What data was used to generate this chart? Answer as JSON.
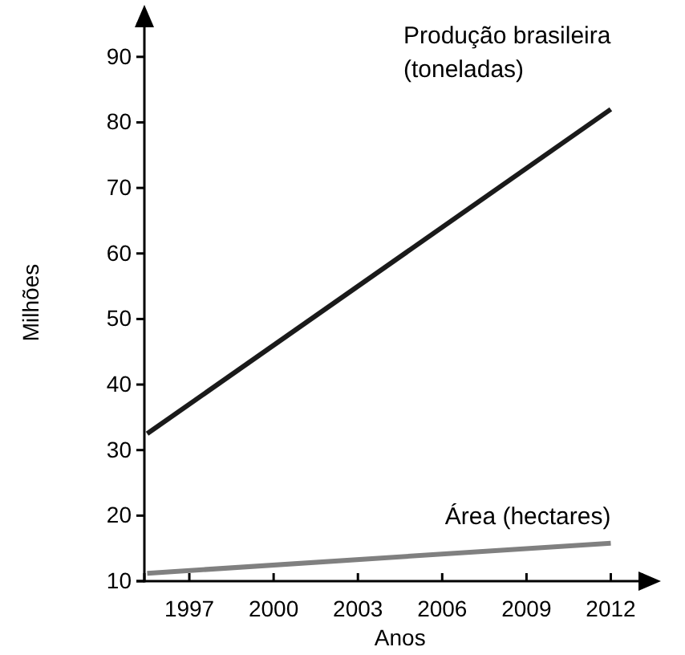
{
  "chart_data": {
    "type": "line",
    "xlabel": "Anos",
    "ylabel": "Milhões",
    "xlim": [
      1995.4,
      2013.1
    ],
    "ylim": [
      10,
      95
    ],
    "xticks": [
      1997,
      2000,
      2003,
      2006,
      2009,
      2012
    ],
    "yticks": [
      10,
      20,
      30,
      40,
      50,
      60,
      70,
      80,
      90
    ],
    "marker": "none",
    "line_style": "solid",
    "x": [
      1995.5,
      2012
    ],
    "series": [
      {
        "name": "Produção brasileira (toneladas)",
        "color": "#1a1a1a",
        "values": [
          32.5,
          82
        ]
      },
      {
        "name": "Área (hectares)",
        "color": "#808080",
        "values": [
          11.2,
          15.8
        ]
      }
    ]
  }
}
